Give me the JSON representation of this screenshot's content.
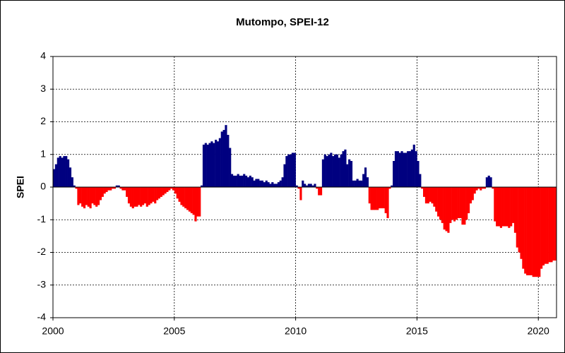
{
  "chart_data": {
    "type": "bar",
    "title": "Mutompo, SPEI-12",
    "y_label": "SPEI",
    "positive_color": "#000080",
    "negative_color": "#ff0000",
    "xlim": [
      2000,
      2020.75
    ],
    "xticks": [
      2000,
      2005,
      2010,
      2015,
      2020
    ],
    "ylim": [
      -4,
      4
    ],
    "yticks": [
      -4,
      -3,
      -2,
      -1,
      0,
      1,
      2,
      3,
      4
    ],
    "grid": true,
    "x": [
      2000,
      2000.083,
      2000.167,
      2000.25,
      2000.333,
      2000.417,
      2000.5,
      2000.583,
      2000.667,
      2000.75,
      2000.833,
      2000.917,
      2001,
      2001.083,
      2001.167,
      2001.25,
      2001.333,
      2001.417,
      2001.5,
      2001.583,
      2001.667,
      2001.75,
      2001.833,
      2001.917,
      2002,
      2002.083,
      2002.167,
      2002.25,
      2002.333,
      2002.417,
      2002.5,
      2002.583,
      2002.667,
      2002.75,
      2002.833,
      2002.917,
      2003,
      2003.083,
      2003.167,
      2003.25,
      2003.333,
      2003.417,
      2003.5,
      2003.583,
      2003.667,
      2003.75,
      2003.833,
      2003.917,
      2004,
      2004.083,
      2004.167,
      2004.25,
      2004.333,
      2004.417,
      2004.5,
      2004.583,
      2004.667,
      2004.75,
      2004.833,
      2004.917,
      2005,
      2005.083,
      2005.167,
      2005.25,
      2005.333,
      2005.417,
      2005.5,
      2005.583,
      2005.667,
      2005.75,
      2005.833,
      2005.917,
      2006,
      2006.083,
      2006.167,
      2006.25,
      2006.333,
      2006.417,
      2006.5,
      2006.583,
      2006.667,
      2006.75,
      2006.833,
      2006.917,
      2007,
      2007.083,
      2007.167,
      2007.25,
      2007.333,
      2007.417,
      2007.5,
      2007.583,
      2007.667,
      2007.75,
      2007.833,
      2007.917,
      2008,
      2008.083,
      2008.167,
      2008.25,
      2008.333,
      2008.417,
      2008.5,
      2008.583,
      2008.667,
      2008.75,
      2008.833,
      2008.917,
      2009,
      2009.083,
      2009.167,
      2009.25,
      2009.333,
      2009.417,
      2009.5,
      2009.583,
      2009.667,
      2009.75,
      2009.833,
      2009.917,
      2010,
      2010.083,
      2010.167,
      2010.25,
      2010.333,
      2010.417,
      2010.5,
      2010.583,
      2010.667,
      2010.75,
      2010.833,
      2010.917,
      2011,
      2011.083,
      2011.167,
      2011.25,
      2011.333,
      2011.417,
      2011.5,
      2011.583,
      2011.667,
      2011.75,
      2011.833,
      2011.917,
      2012,
      2012.083,
      2012.167,
      2012.25,
      2012.333,
      2012.417,
      2012.5,
      2012.583,
      2012.667,
      2012.75,
      2012.833,
      2012.917,
      2013,
      2013.083,
      2013.167,
      2013.25,
      2013.333,
      2013.417,
      2013.5,
      2013.583,
      2013.667,
      2013.75,
      2013.833,
      2013.917,
      2014,
      2014.083,
      2014.167,
      2014.25,
      2014.333,
      2014.417,
      2014.5,
      2014.583,
      2014.667,
      2014.75,
      2014.833,
      2014.917,
      2015,
      2015.083,
      2015.167,
      2015.25,
      2015.333,
      2015.417,
      2015.5,
      2015.583,
      2015.667,
      2015.75,
      2015.833,
      2015.917,
      2016,
      2016.083,
      2016.167,
      2016.25,
      2016.333,
      2016.417,
      2016.5,
      2016.583,
      2016.667,
      2016.75,
      2016.833,
      2016.917,
      2017,
      2017.083,
      2017.167,
      2017.25,
      2017.333,
      2017.417,
      2017.5,
      2017.583,
      2017.667,
      2017.75,
      2017.833,
      2017.917,
      2018,
      2018.083,
      2018.167,
      2018.25,
      2018.333,
      2018.417,
      2018.5,
      2018.583,
      2018.667,
      2018.75,
      2018.833,
      2018.917,
      2019,
      2019.083,
      2019.167,
      2019.25,
      2019.333,
      2019.417,
      2019.5,
      2019.583,
      2019.667,
      2019.75,
      2019.833,
      2019.917,
      2020,
      2020.083,
      2020.167,
      2020.25,
      2020.333,
      2020.417,
      2020.5,
      2020.583,
      2020.667
    ],
    "values": [
      0.55,
      0.7,
      0.9,
      0.95,
      0.9,
      0.95,
      0.95,
      0.85,
      0.6,
      0.3,
      0.05,
      -0.05,
      -0.55,
      -0.5,
      -0.6,
      -0.65,
      -0.55,
      -0.6,
      -0.65,
      -0.5,
      -0.55,
      -0.6,
      -0.55,
      -0.4,
      -0.3,
      -0.2,
      -0.15,
      -0.1,
      -0.1,
      -0.05,
      -0.05,
      0.05,
      0.05,
      -0.05,
      -0.1,
      -0.1,
      -0.3,
      -0.5,
      -0.6,
      -0.65,
      -0.6,
      -0.6,
      -0.55,
      -0.6,
      -0.55,
      -0.5,
      -0.6,
      -0.55,
      -0.5,
      -0.45,
      -0.5,
      -0.4,
      -0.35,
      -0.3,
      -0.25,
      -0.2,
      -0.15,
      -0.1,
      -0.05,
      -0.1,
      -0.2,
      -0.35,
      -0.45,
      -0.55,
      -0.6,
      -0.65,
      -0.7,
      -0.75,
      -0.8,
      -0.85,
      -1.05,
      -0.9,
      -0.9,
      0.05,
      1.3,
      1.35,
      1.3,
      1.35,
      1.4,
      1.35,
      1.45,
      1.4,
      1.5,
      1.7,
      1.75,
      1.9,
      1.6,
      1.2,
      0.4,
      0.35,
      0.35,
      0.4,
      0.35,
      0.35,
      0.4,
      0.35,
      0.3,
      0.35,
      0.3,
      0.2,
      0.25,
      0.25,
      0.2,
      0.2,
      0.15,
      0.2,
      0.15,
      0.1,
      0.15,
      0.1,
      0.1,
      0.15,
      0.2,
      0.3,
      0.7,
      0.95,
      1.0,
      1.0,
      1.05,
      1.05,
      0.05,
      -0.05,
      -0.4,
      0.2,
      0.1,
      0.05,
      0.1,
      0.1,
      0.05,
      0.1,
      -0.05,
      -0.25,
      -0.25,
      0.85,
      1.0,
      0.95,
      1.0,
      1.05,
      0.95,
      1.0,
      1.0,
      0.9,
      1.0,
      1.1,
      1.15,
      0.7,
      0.85,
      0.8,
      0.2,
      0.2,
      0.25,
      0.2,
      0.2,
      0.4,
      0.6,
      0.3,
      -0.5,
      -0.7,
      -0.7,
      -0.7,
      -0.7,
      -0.65,
      -0.65,
      -0.65,
      -0.8,
      -0.95,
      -0.05,
      0.05,
      0.8,
      1.1,
      1.1,
      1.05,
      1.1,
      1.05,
      1.05,
      1.1,
      1.1,
      1.15,
      1.3,
      1.1,
      0.8,
      0.4,
      -0.05,
      -0.3,
      -0.5,
      -0.5,
      -0.45,
      -0.5,
      -0.6,
      -0.75,
      -0.9,
      -1.0,
      -1.1,
      -1.3,
      -1.35,
      -1.4,
      -1.1,
      -1.0,
      -1.05,
      -1.0,
      -0.95,
      -0.95,
      -1.15,
      -1.15,
      -1.0,
      -0.8,
      -0.5,
      -0.4,
      -0.2,
      -0.1,
      -0.05,
      -0.1,
      -0.05,
      -0.05,
      0.3,
      0.35,
      0.3,
      -0.05,
      -1.05,
      -1.2,
      -1.2,
      -1.25,
      -1.2,
      -1.2,
      -1.2,
      -1.25,
      -1.2,
      -1.1,
      -1.4,
      -1.85,
      -2.0,
      -2.2,
      -2.5,
      -2.65,
      -2.7,
      -2.7,
      -2.7,
      -2.75,
      -2.75,
      -2.75,
      -2.75,
      -2.5,
      -2.4,
      -2.35,
      -2.35,
      -2.3,
      -2.3,
      -2.25,
      -2.25
    ]
  }
}
